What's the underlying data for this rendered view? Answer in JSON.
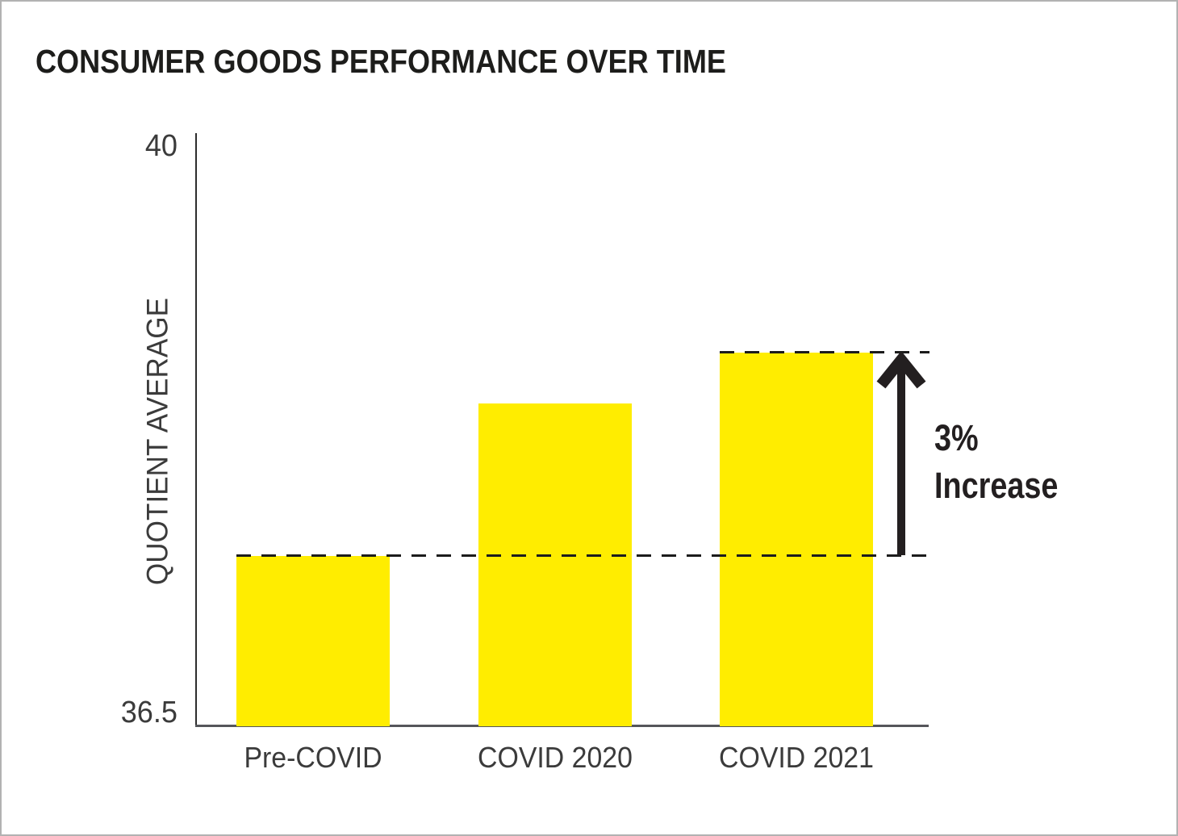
{
  "chart_data": {
    "type": "bar",
    "title": "CONSUMER GOODS PERFORMANCE OVER TIME",
    "categories": [
      "Pre-COVID",
      "COVID 2020",
      "COVID 2021"
    ],
    "values": [
      37.5,
      38.4,
      38.7
    ],
    "xlabel": "",
    "ylabel": "QUOTIENT AVERAGE",
    "ylim": [
      36.5,
      40
    ],
    "yticks": [
      {
        "value": 40,
        "label": "40"
      },
      {
        "value": 36.5,
        "label": "36.5"
      }
    ],
    "grid": false,
    "legend": "none",
    "bar_color": "#FFED00",
    "annotation": {
      "label_line1": "3%",
      "label_line2": "Increase",
      "from_value": 37.5,
      "to_value": 38.7
    }
  },
  "colors": {
    "background": "#FFFFFF",
    "frame_border": "#B2B2B2",
    "bar": "#FFED00",
    "y_axis": "#2D2D2D",
    "x_axis": "#55565A",
    "dashed_line": "#1C1C1C",
    "arrow": "#231F20",
    "title_text": "#1D1D1B",
    "label_text": "#3B3B3B"
  }
}
